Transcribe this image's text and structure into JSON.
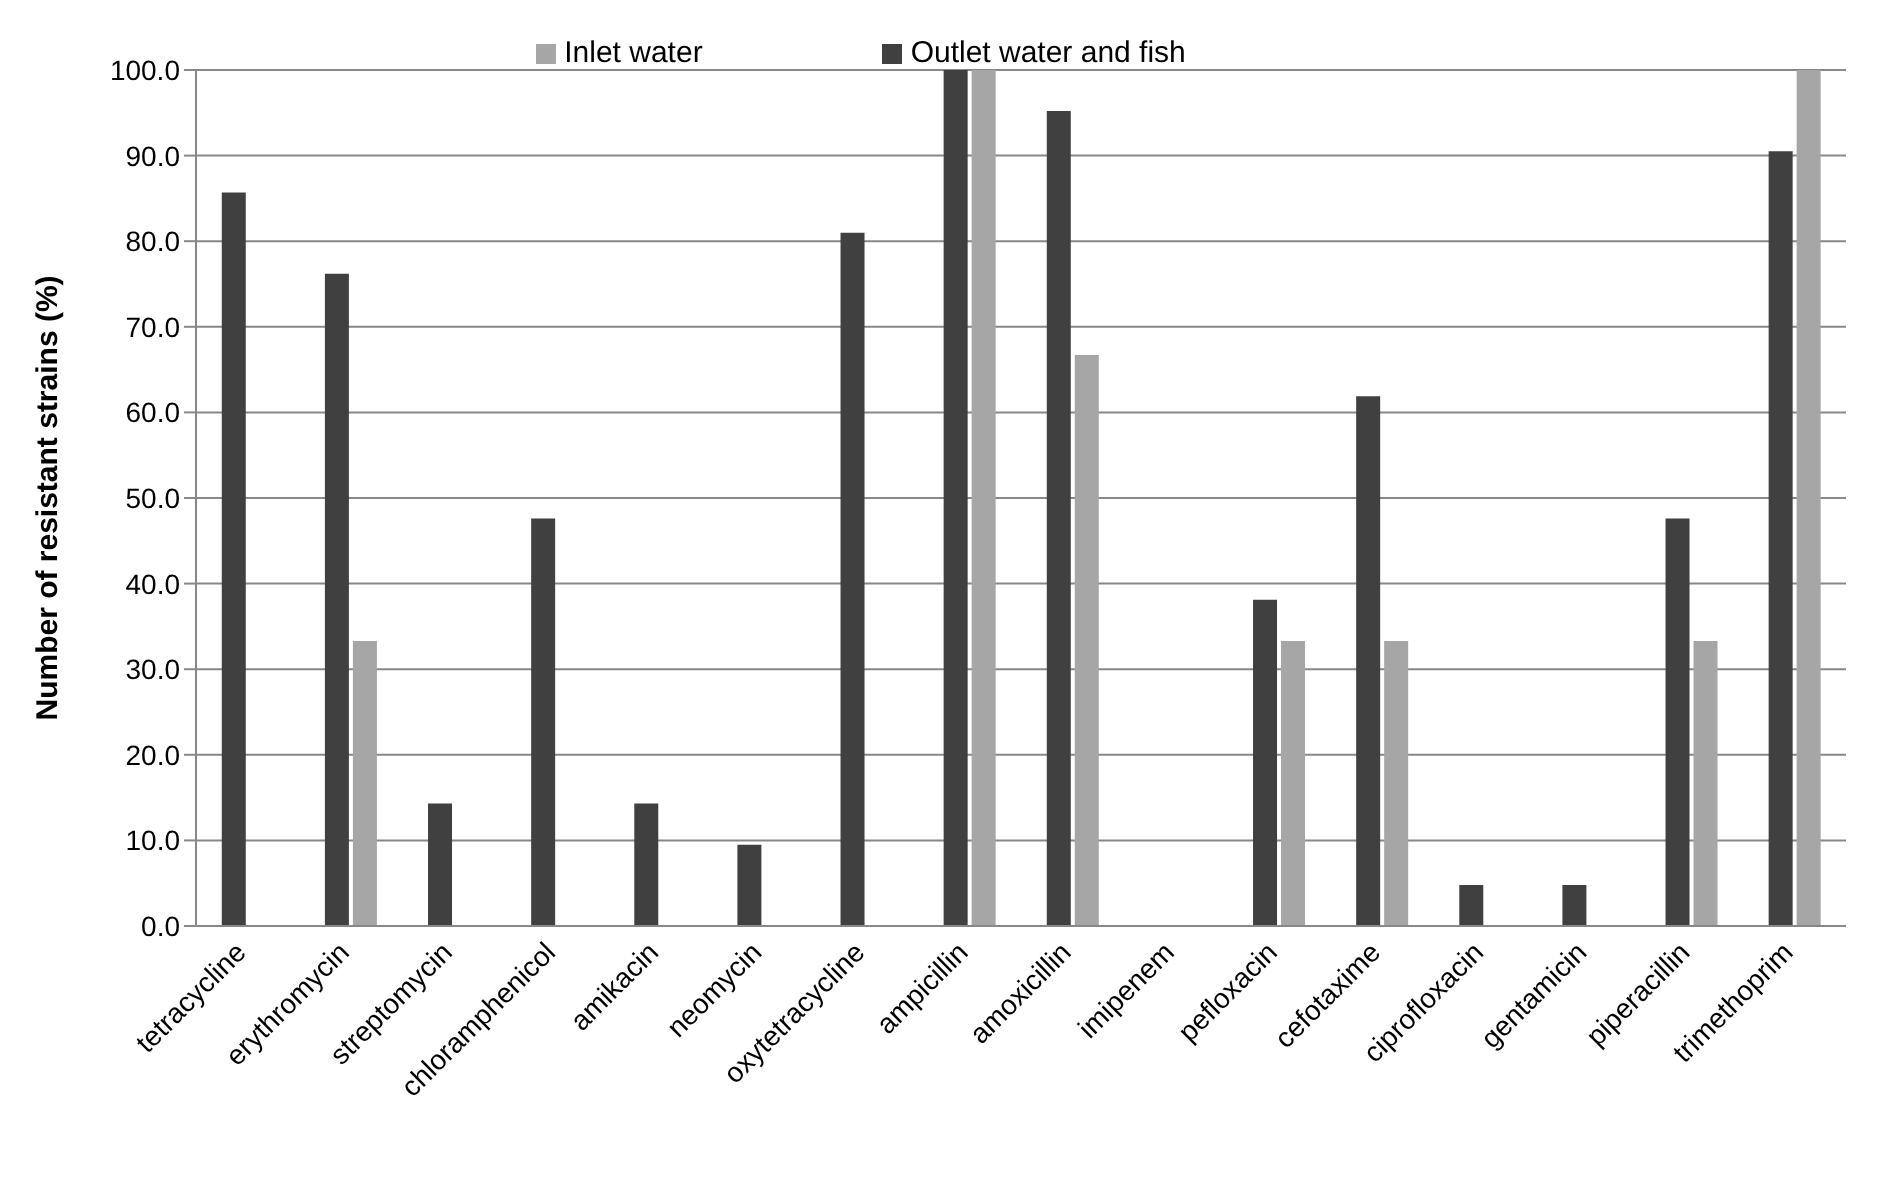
{
  "chart_data": {
    "type": "bar",
    "ylabel": "Number of resistant strains (%)",
    "categories": [
      "tetracycline",
      "erythromycin",
      "streptomycin",
      "chloramphenicol",
      "amikacin",
      "neomycin",
      "oxytetracycline",
      "ampicillin",
      "amoxicillin",
      "imipenem",
      "pefloxacin",
      "cefotaxime",
      "ciprofloxacin",
      "gentamicin",
      "piperacillin",
      "trimethoprim"
    ],
    "series": [
      {
        "name": "Outlet water and fish",
        "color": "#404040",
        "values": [
          85.7,
          76.2,
          14.3,
          47.6,
          14.3,
          9.5,
          81.0,
          100,
          95.2,
          0,
          38.1,
          61.9,
          4.8,
          4.8,
          47.6,
          90.5
        ]
      },
      {
        "name": "Inlet water",
        "color": "#a6a6a6",
        "values": [
          0,
          33.3,
          0,
          0,
          0,
          0,
          0,
          100,
          66.7,
          0,
          33.3,
          33.3,
          0,
          0,
          33.3,
          100
        ]
      }
    ],
    "ylim": [
      0,
      100
    ],
    "yticks": [
      {
        "value": 0,
        "label": "0.0"
      },
      {
        "value": 10,
        "label": "10.0"
      },
      {
        "value": 20,
        "label": "20.0"
      },
      {
        "value": 30,
        "label": "30.0"
      },
      {
        "value": 40,
        "label": "40.0"
      },
      {
        "value": 50,
        "label": "50.0"
      },
      {
        "value": 60,
        "label": "60.0"
      },
      {
        "value": 70,
        "label": "70.0"
      },
      {
        "value": 80,
        "label": "80.0"
      },
      {
        "value": 90,
        "label": "90.0"
      },
      {
        "value": 100,
        "label": "100.0"
      }
    ],
    "grid": "y",
    "legend": "top"
  }
}
